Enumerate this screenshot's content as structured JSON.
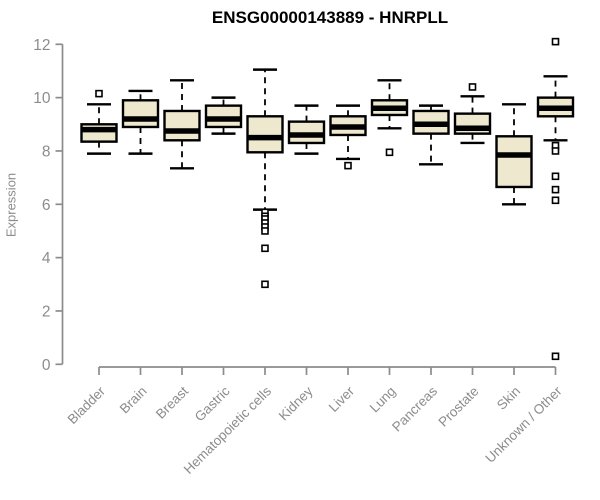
{
  "chart_data": {
    "type": "boxplot",
    "title": "ENSG00000143889 - HNRPLL",
    "ylabel": "Expression",
    "xlabel": "",
    "ylim": [
      0,
      12
    ],
    "yticks": [
      0,
      2,
      4,
      6,
      8,
      10,
      12
    ],
    "grid": false,
    "legend": "none",
    "x_label_rotation": 45,
    "whisker_style": "dashed",
    "outlier_marker": "open-square",
    "categories": [
      "Bladder",
      "Brain",
      "Breast",
      "Gastric",
      "Hematopoietic cells",
      "Kidney",
      "Liver",
      "Lung",
      "Pancreas",
      "Prostate",
      "Skin",
      "Unknown / Other"
    ],
    "series": [
      {
        "category": "Bladder",
        "whisker_low": 7.9,
        "q1": 8.35,
        "median": 8.8,
        "q3": 9.0,
        "whisker_high": 9.75,
        "outliers": [
          10.15
        ]
      },
      {
        "category": "Brain",
        "whisker_low": 7.9,
        "q1": 8.9,
        "median": 9.2,
        "q3": 9.9,
        "whisker_high": 10.25,
        "outliers": []
      },
      {
        "category": "Breast",
        "whisker_low": 7.35,
        "q1": 8.4,
        "median": 8.75,
        "q3": 9.5,
        "whisker_high": 10.65,
        "outliers": []
      },
      {
        "category": "Gastric",
        "whisker_low": 8.65,
        "q1": 8.9,
        "median": 9.2,
        "q3": 9.7,
        "whisker_high": 10.0,
        "outliers": []
      },
      {
        "category": "Hematopoietic cells",
        "whisker_low": 5.8,
        "q1": 7.95,
        "median": 8.5,
        "q3": 9.3,
        "whisker_high": 11.05,
        "outliers": [
          5.7,
          5.55,
          5.45,
          5.3,
          5.15,
          5.0,
          4.35,
          3.0
        ]
      },
      {
        "category": "Kidney",
        "whisker_low": 7.9,
        "q1": 8.3,
        "median": 8.6,
        "q3": 9.1,
        "whisker_high": 9.7,
        "outliers": []
      },
      {
        "category": "Liver",
        "whisker_low": 7.7,
        "q1": 8.6,
        "median": 8.9,
        "q3": 9.3,
        "whisker_high": 9.7,
        "outliers": [
          7.45
        ]
      },
      {
        "category": "Lung",
        "whisker_low": 8.85,
        "q1": 9.35,
        "median": 9.6,
        "q3": 9.9,
        "whisker_high": 10.65,
        "outliers": [
          7.95
        ]
      },
      {
        "category": "Pancreas",
        "whisker_low": 7.5,
        "q1": 8.65,
        "median": 9.0,
        "q3": 9.5,
        "whisker_high": 9.7,
        "outliers": []
      },
      {
        "category": "Prostate",
        "whisker_low": 8.3,
        "q1": 8.65,
        "median": 8.85,
        "q3": 9.4,
        "whisker_high": 10.05,
        "outliers": [
          10.4
        ]
      },
      {
        "category": "Skin",
        "whisker_low": 6.0,
        "q1": 6.65,
        "median": 7.85,
        "q3": 8.55,
        "whisker_high": 9.75,
        "outliers": []
      },
      {
        "category": "Unknown / Other",
        "whisker_low": 8.4,
        "q1": 9.3,
        "median": 9.6,
        "q3": 10.0,
        "whisker_high": 10.8,
        "outliers": [
          12.1,
          8.2,
          8.0,
          7.05,
          6.55,
          6.15,
          0.3
        ]
      }
    ],
    "colors": {
      "background": "#ffffff",
      "box_fill": "#EDE8CE",
      "box_border": "#000000",
      "median": "#000000",
      "whisker": "#000000",
      "outlier_fill": "#ffffff",
      "axis": "#8c8c8c",
      "tick_label": "#8c8c8c",
      "title": "#000000"
    }
  }
}
